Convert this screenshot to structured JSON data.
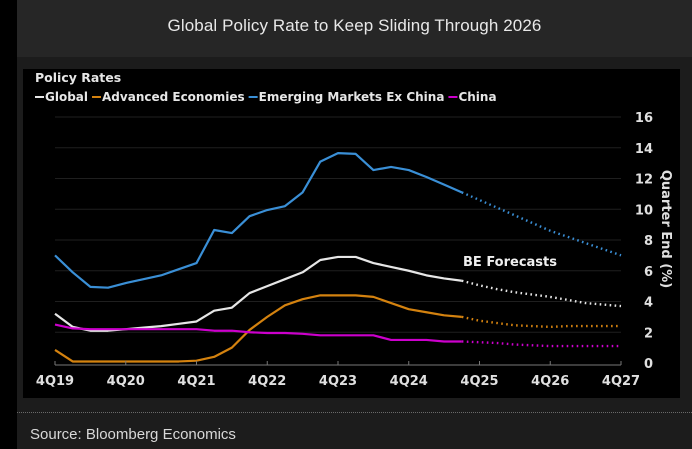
{
  "header": {
    "title": "Global Policy Rate to Keep Sliding Through 2026"
  },
  "footer": {
    "source": "Source: Bloomberg Economics"
  },
  "chart_data": {
    "type": "line",
    "title": "Global Policy Rate to Keep Sliding Through 2026",
    "legend_title": "Policy Rates",
    "legend_position": "top-left",
    "xlabel": "",
    "ylabel": "Quarter End (%)",
    "ylim": [
      0,
      16
    ],
    "yticks": [
      0,
      2,
      4,
      6,
      8,
      10,
      12,
      14,
      16
    ],
    "grid": true,
    "x_tick_labels": [
      "4Q19",
      "4Q20",
      "4Q21",
      "4Q22",
      "4Q23",
      "4Q24",
      "4Q25",
      "4Q26",
      "4Q27"
    ],
    "x": [
      "4Q19",
      "1Q20",
      "2Q20",
      "3Q20",
      "4Q20",
      "1Q21",
      "2Q21",
      "3Q21",
      "4Q21",
      "1Q22",
      "2Q22",
      "3Q22",
      "4Q22",
      "1Q23",
      "2Q23",
      "3Q23",
      "4Q23",
      "1Q24",
      "2Q24",
      "3Q24",
      "4Q24",
      "1Q25",
      "2Q25",
      "3Q25",
      "4Q25",
      "1Q26",
      "2Q26",
      "3Q26",
      "4Q26",
      "1Q27",
      "2Q27",
      "3Q27",
      "4Q27"
    ],
    "forecast_start": "3Q25",
    "annotation": "BE Forecasts",
    "series": [
      {
        "name": "Global",
        "color": "#e6e6e6",
        "values": [
          3.2,
          2.35,
          2.1,
          2.1,
          2.2,
          2.3,
          2.4,
          2.55,
          2.7,
          3.4,
          3.6,
          4.55,
          5.0,
          5.45,
          5.9,
          6.7,
          6.9,
          6.9,
          6.5,
          6.25,
          6.0,
          5.7,
          5.5,
          5.35,
          5.05,
          4.8,
          4.6,
          4.45,
          4.3,
          4.1,
          3.9,
          3.8,
          3.7
        ]
      },
      {
        "name": "Advanced Economies",
        "color": "#d4820f",
        "values": [
          0.85,
          0.1,
          0.1,
          0.1,
          0.1,
          0.1,
          0.1,
          0.1,
          0.15,
          0.4,
          1.0,
          2.15,
          3.0,
          3.75,
          4.15,
          4.4,
          4.4,
          4.4,
          4.3,
          3.9,
          3.5,
          3.3,
          3.1,
          3.0,
          2.75,
          2.6,
          2.45,
          2.4,
          2.35,
          2.4,
          2.4,
          2.4,
          2.4
        ]
      },
      {
        "name": "Emerging Markets Ex China",
        "color": "#3a8fd6",
        "values": [
          7.0,
          5.9,
          4.95,
          4.9,
          5.2,
          5.45,
          5.7,
          6.1,
          6.5,
          8.65,
          8.45,
          9.55,
          9.95,
          10.2,
          11.1,
          13.1,
          13.65,
          13.6,
          12.55,
          12.75,
          12.55,
          12.1,
          11.6,
          11.1,
          10.6,
          10.1,
          9.6,
          9.1,
          8.6,
          8.2,
          7.8,
          7.4,
          7.0
        ]
      },
      {
        "name": "China",
        "color": "#cc00cc",
        "values": [
          2.5,
          2.25,
          2.2,
          2.2,
          2.2,
          2.2,
          2.2,
          2.2,
          2.2,
          2.1,
          2.1,
          2.0,
          1.95,
          1.95,
          1.9,
          1.8,
          1.8,
          1.8,
          1.8,
          1.5,
          1.5,
          1.5,
          1.4,
          1.4,
          1.35,
          1.3,
          1.2,
          1.15,
          1.1,
          1.1,
          1.1,
          1.1,
          1.1
        ]
      }
    ]
  }
}
